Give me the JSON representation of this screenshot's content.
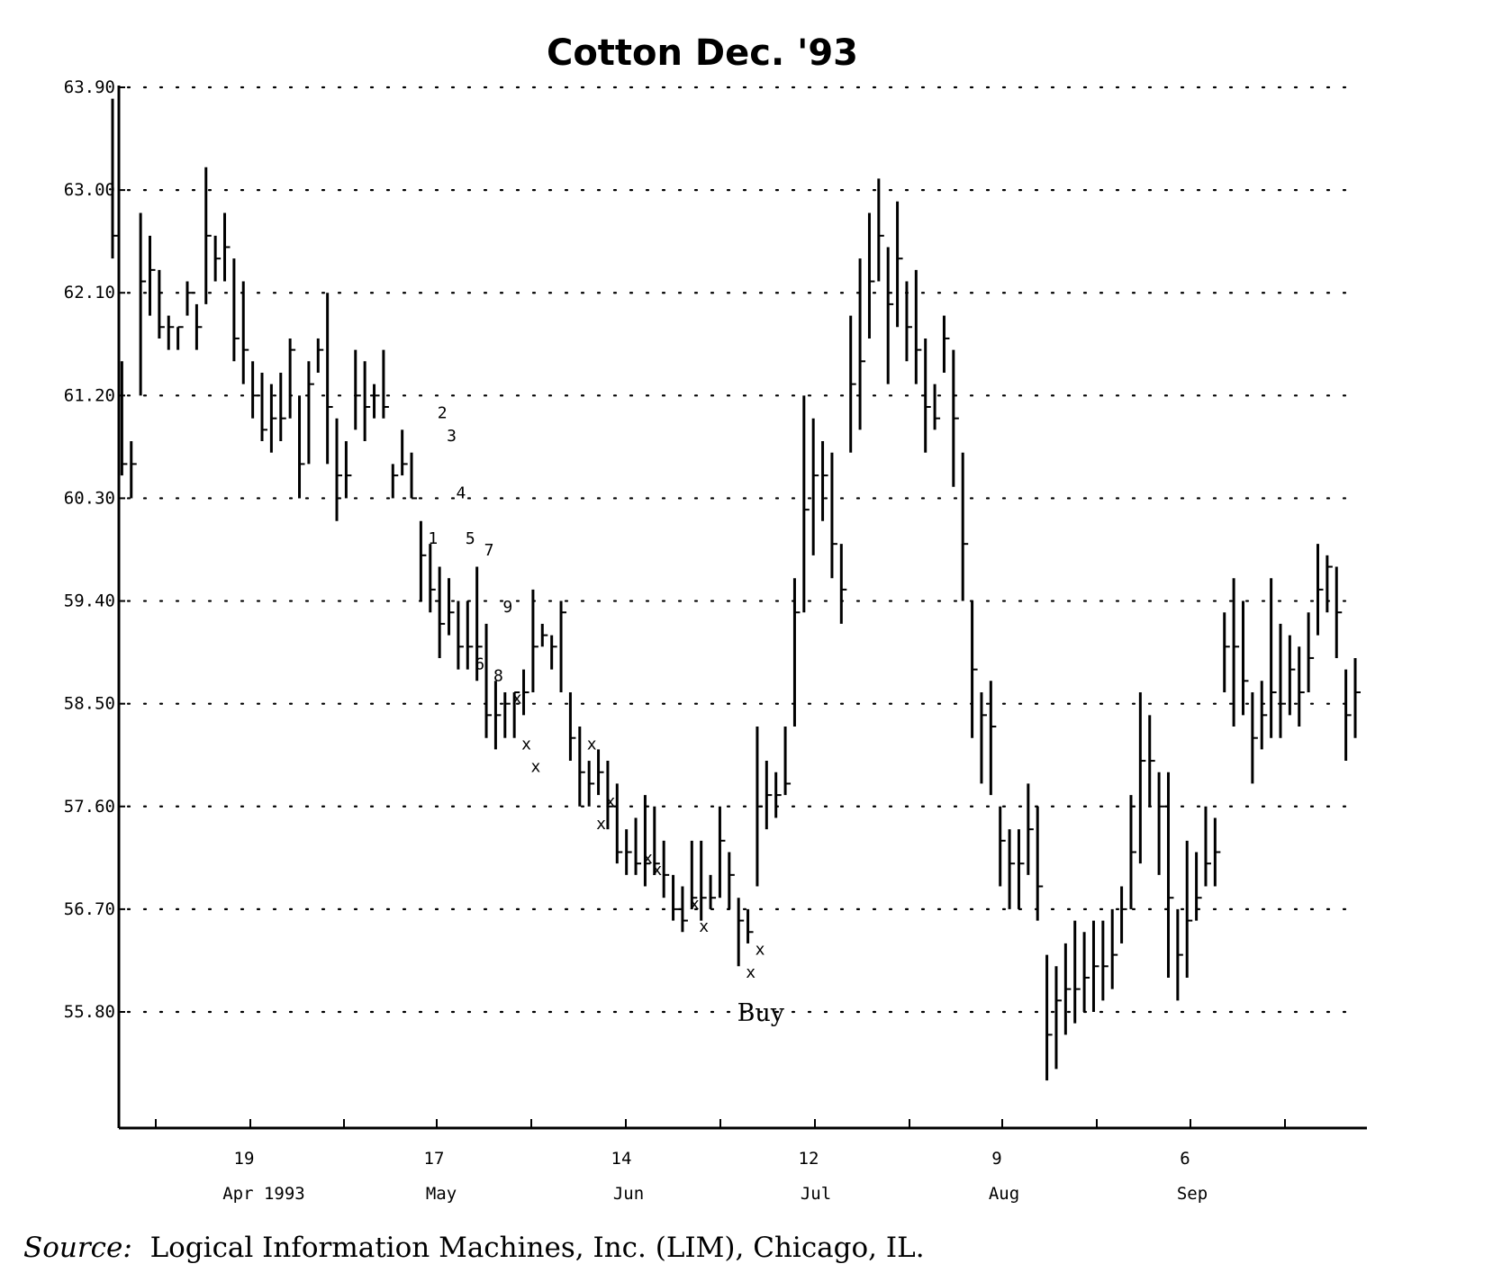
{
  "chart_data": {
    "type": "bar",
    "subtype": "ohlc",
    "title": "Cotton Dec. '93",
    "xlabel": "",
    "ylabel": "",
    "ylim": [
      55.8,
      63.9
    ],
    "y_ticks": [
      "63.90",
      "63.00",
      "62.10",
      "61.20",
      "60.30",
      "59.40",
      "58.50",
      "57.60",
      "56.70",
      "55.80"
    ],
    "grid": "dotted horizontal",
    "x_tick_labels": [
      {
        "day": "19",
        "month": "Apr 1993"
      },
      {
        "day": "17",
        "month": "May"
      },
      {
        "day": "14",
        "month": "Jun"
      },
      {
        "day": "12",
        "month": "Jul"
      },
      {
        "day": "9",
        "month": "Aug"
      },
      {
        "day": "6",
        "month": "Sep"
      }
    ],
    "bars": [
      {
        "h": 63.8,
        "l": 62.4,
        "c": 62.6
      },
      {
        "h": 61.5,
        "l": 60.5,
        "c": 60.6
      },
      {
        "h": 60.8,
        "l": 60.3,
        "c": 60.6
      },
      {
        "h": 62.8,
        "l": 61.2,
        "c": 62.2
      },
      {
        "h": 62.6,
        "l": 61.9,
        "c": 62.3
      },
      {
        "h": 62.3,
        "l": 61.7,
        "c": 61.8
      },
      {
        "h": 61.9,
        "l": 61.6,
        "c": 61.8
      },
      {
        "h": 61.8,
        "l": 61.6,
        "c": 61.8
      },
      {
        "h": 62.2,
        "l": 61.9,
        "c": 62.1
      },
      {
        "h": 62.0,
        "l": 61.6,
        "c": 61.8
      },
      {
        "h": 63.2,
        "l": 62.0,
        "c": 62.6
      },
      {
        "h": 62.6,
        "l": 62.2,
        "c": 62.4
      },
      {
        "h": 62.8,
        "l": 62.2,
        "c": 62.5
      },
      {
        "h": 62.4,
        "l": 61.5,
        "c": 61.7
      },
      {
        "h": 62.2,
        "l": 61.3,
        "c": 61.6
      },
      {
        "h": 61.5,
        "l": 61.0,
        "c": 61.2
      },
      {
        "h": 61.4,
        "l": 60.8,
        "c": 60.9
      },
      {
        "h": 61.3,
        "l": 60.7,
        "c": 61.0
      },
      {
        "h": 61.4,
        "l": 60.8,
        "c": 61.0
      },
      {
        "h": 61.7,
        "l": 61.0,
        "c": 61.6
      },
      {
        "h": 61.2,
        "l": 60.3,
        "c": 60.6
      },
      {
        "h": 61.5,
        "l": 60.6,
        "c": 61.3
      },
      {
        "h": 61.7,
        "l": 61.4,
        "c": 61.6
      },
      {
        "h": 62.1,
        "l": 60.6,
        "c": 61.1
      },
      {
        "h": 61.0,
        "l": 60.1,
        "c": 60.5
      },
      {
        "h": 60.8,
        "l": 60.3,
        "c": 60.5
      },
      {
        "h": 61.6,
        "l": 60.9,
        "c": 61.2
      },
      {
        "h": 61.5,
        "l": 60.8,
        "c": 61.1
      },
      {
        "h": 61.3,
        "l": 61.0,
        "c": 61.2
      },
      {
        "h": 61.6,
        "l": 61.0,
        "c": 61.1
      },
      {
        "h": 60.6,
        "l": 60.3,
        "c": 60.5
      },
      {
        "h": 60.9,
        "l": 60.5,
        "c": 60.6
      },
      {
        "h": 60.7,
        "l": 60.3,
        "c": 60.3
      },
      {
        "h": 60.1,
        "l": 59.4,
        "c": 59.8
      },
      {
        "h": 59.9,
        "l": 59.3,
        "c": 59.5
      },
      {
        "h": 59.7,
        "l": 58.9,
        "c": 59.2
      },
      {
        "h": 59.6,
        "l": 59.1,
        "c": 59.3
      },
      {
        "h": 59.4,
        "l": 58.8,
        "c": 59.0
      },
      {
        "h": 59.4,
        "l": 58.8,
        "c": 59.0
      },
      {
        "h": 59.7,
        "l": 58.7,
        "c": 59.0
      },
      {
        "h": 59.2,
        "l": 58.2,
        "c": 58.4
      },
      {
        "h": 58.7,
        "l": 58.1,
        "c": 58.4
      },
      {
        "h": 58.6,
        "l": 58.2,
        "c": 58.5
      },
      {
        "h": 58.6,
        "l": 58.2,
        "c": 58.6
      },
      {
        "h": 58.8,
        "l": 58.4,
        "c": 58.6
      },
      {
        "h": 59.5,
        "l": 58.6,
        "c": 59.0
      },
      {
        "h": 59.2,
        "l": 59.0,
        "c": 59.1
      },
      {
        "h": 59.1,
        "l": 58.8,
        "c": 59.0
      },
      {
        "h": 59.4,
        "l": 58.6,
        "c": 59.3
      },
      {
        "h": 58.6,
        "l": 58.0,
        "c": 58.2
      },
      {
        "h": 58.3,
        "l": 57.6,
        "c": 57.9
      },
      {
        "h": 58.0,
        "l": 57.6,
        "c": 57.8
      },
      {
        "h": 58.1,
        "l": 57.7,
        "c": 57.9
      },
      {
        "h": 58.0,
        "l": 57.4,
        "c": 57.6
      },
      {
        "h": 57.8,
        "l": 57.1,
        "c": 57.2
      },
      {
        "h": 57.4,
        "l": 57.0,
        "c": 57.2
      },
      {
        "h": 57.5,
        "l": 57.0,
        "c": 57.1
      },
      {
        "h": 57.7,
        "l": 56.9,
        "c": 57.1
      },
      {
        "h": 57.6,
        "l": 57.0,
        "c": 57.1
      },
      {
        "h": 57.3,
        "l": 56.8,
        "c": 57.0
      },
      {
        "h": 57.0,
        "l": 56.6,
        "c": 56.7
      },
      {
        "h": 56.9,
        "l": 56.5,
        "c": 56.6
      },
      {
        "h": 57.3,
        "l": 56.7,
        "c": 56.8
      },
      {
        "h": 57.3,
        "l": 56.6,
        "c": 56.8
      },
      {
        "h": 57.0,
        "l": 56.7,
        "c": 56.8
      },
      {
        "h": 57.6,
        "l": 56.8,
        "c": 57.3
      },
      {
        "h": 57.2,
        "l": 56.7,
        "c": 57.0
      },
      {
        "h": 56.8,
        "l": 56.2,
        "c": 56.6
      },
      {
        "h": 56.7,
        "l": 56.4,
        "c": 56.5
      },
      {
        "h": 58.3,
        "l": 56.9,
        "c": 57.6
      },
      {
        "h": 58.0,
        "l": 57.4,
        "c": 57.7
      },
      {
        "h": 57.9,
        "l": 57.5,
        "c": 57.7
      },
      {
        "h": 58.3,
        "l": 57.7,
        "c": 57.8
      },
      {
        "h": 59.6,
        "l": 58.3,
        "c": 59.3
      },
      {
        "h": 61.2,
        "l": 59.3,
        "c": 60.2
      },
      {
        "h": 61.0,
        "l": 59.8,
        "c": 60.5
      },
      {
        "h": 60.8,
        "l": 60.1,
        "c": 60.5
      },
      {
        "h": 60.7,
        "l": 59.6,
        "c": 59.9
      },
      {
        "h": 59.9,
        "l": 59.2,
        "c": 59.5
      },
      {
        "h": 61.9,
        "l": 60.7,
        "c": 61.3
      },
      {
        "h": 62.4,
        "l": 60.9,
        "c": 61.5
      },
      {
        "h": 62.8,
        "l": 61.7,
        "c": 62.2
      },
      {
        "h": 63.1,
        "l": 62.2,
        "c": 62.6
      },
      {
        "h": 62.5,
        "l": 61.3,
        "c": 62.0
      },
      {
        "h": 62.9,
        "l": 61.8,
        "c": 62.4
      },
      {
        "h": 62.2,
        "l": 61.5,
        "c": 61.8
      },
      {
        "h": 62.3,
        "l": 61.3,
        "c": 61.6
      },
      {
        "h": 61.7,
        "l": 60.7,
        "c": 61.1
      },
      {
        "h": 61.3,
        "l": 60.9,
        "c": 61.0
      },
      {
        "h": 61.9,
        "l": 61.4,
        "c": 61.7
      },
      {
        "h": 61.6,
        "l": 60.4,
        "c": 61.0
      },
      {
        "h": 60.7,
        "l": 59.4,
        "c": 59.9
      },
      {
        "h": 59.4,
        "l": 58.2,
        "c": 58.8
      },
      {
        "h": 58.6,
        "l": 57.8,
        "c": 58.4
      },
      {
        "h": 58.7,
        "l": 57.7,
        "c": 58.3
      },
      {
        "h": 57.6,
        "l": 56.9,
        "c": 57.3
      },
      {
        "h": 57.4,
        "l": 56.7,
        "c": 57.1
      },
      {
        "h": 57.4,
        "l": 56.7,
        "c": 57.1
      },
      {
        "h": 57.8,
        "l": 57.0,
        "c": 57.4
      },
      {
        "h": 57.6,
        "l": 56.6,
        "c": 56.9
      },
      {
        "h": 56.3,
        "l": 55.2,
        "c": 55.6
      },
      {
        "h": 56.2,
        "l": 55.3,
        "c": 55.9
      },
      {
        "h": 56.4,
        "l": 55.6,
        "c": 56.0
      },
      {
        "h": 56.6,
        "l": 55.7,
        "c": 56.0
      },
      {
        "h": 56.5,
        "l": 55.8,
        "c": 56.1
      },
      {
        "h": 56.6,
        "l": 55.8,
        "c": 56.2
      },
      {
        "h": 56.6,
        "l": 55.9,
        "c": 56.2
      },
      {
        "h": 56.7,
        "l": 56.0,
        "c": 56.3
      },
      {
        "h": 56.9,
        "l": 56.4,
        "c": 56.7
      },
      {
        "h": 57.7,
        "l": 56.7,
        "c": 57.2
      },
      {
        "h": 58.6,
        "l": 57.1,
        "c": 58.0
      },
      {
        "h": 58.4,
        "l": 57.6,
        "c": 58.0
      },
      {
        "h": 57.9,
        "l": 57.0,
        "c": 57.6
      },
      {
        "h": 57.9,
        "l": 56.1,
        "c": 56.8
      },
      {
        "h": 56.7,
        "l": 55.9,
        "c": 56.3
      },
      {
        "h": 57.3,
        "l": 56.1,
        "c": 56.6
      },
      {
        "h": 57.2,
        "l": 56.6,
        "c": 56.8
      },
      {
        "h": 57.6,
        "l": 56.9,
        "c": 57.1
      },
      {
        "h": 57.5,
        "l": 56.9,
        "c": 57.2
      },
      {
        "h": 59.3,
        "l": 58.6,
        "c": 59.0
      },
      {
        "h": 59.6,
        "l": 58.3,
        "c": 59.0
      },
      {
        "h": 59.4,
        "l": 58.4,
        "c": 58.7
      },
      {
        "h": 58.6,
        "l": 57.8,
        "c": 58.2
      },
      {
        "h": 58.7,
        "l": 58.1,
        "c": 58.4
      },
      {
        "h": 59.6,
        "l": 58.2,
        "c": 58.6
      },
      {
        "h": 59.2,
        "l": 58.2,
        "c": 58.5
      },
      {
        "h": 59.1,
        "l": 58.4,
        "c": 58.8
      },
      {
        "h": 59.0,
        "l": 58.3,
        "c": 58.6
      },
      {
        "h": 59.3,
        "l": 58.6,
        "c": 58.9
      },
      {
        "h": 59.9,
        "l": 59.1,
        "c": 59.5
      },
      {
        "h": 59.8,
        "l": 59.3,
        "c": 59.7
      },
      {
        "h": 59.7,
        "l": 58.9,
        "c": 59.3
      },
      {
        "h": 58.8,
        "l": 58.0,
        "c": 58.4
      },
      {
        "h": 58.9,
        "l": 58.2,
        "c": 58.6
      }
    ],
    "annotations": [
      {
        "text": "1",
        "i": 33,
        "y": 59.9
      },
      {
        "text": "2",
        "i": 34,
        "y": 61.0
      },
      {
        "text": "3",
        "i": 35,
        "y": 60.8
      },
      {
        "text": "4",
        "i": 36,
        "y": 60.3
      },
      {
        "text": "5",
        "i": 37,
        "y": 59.9
      },
      {
        "text": "6",
        "i": 38,
        "y": 58.8
      },
      {
        "text": "7",
        "i": 39,
        "y": 59.8
      },
      {
        "text": "8",
        "i": 40,
        "y": 58.7
      },
      {
        "text": "9",
        "i": 41,
        "y": 59.3
      },
      {
        "text": "x",
        "i": 42,
        "y": 58.5
      },
      {
        "text": "x",
        "i": 43,
        "y": 58.1
      },
      {
        "text": "x",
        "i": 44,
        "y": 57.9
      },
      {
        "text": "x",
        "i": 50,
        "y": 58.1
      },
      {
        "text": "x",
        "i": 51,
        "y": 57.4
      },
      {
        "text": "x",
        "i": 52,
        "y": 57.6
      },
      {
        "text": "x",
        "i": 56,
        "y": 57.1
      },
      {
        "text": "x",
        "i": 57,
        "y": 57.0
      },
      {
        "text": "x",
        "i": 61,
        "y": 56.7
      },
      {
        "text": "x",
        "i": 62,
        "y": 56.5
      },
      {
        "text": "x",
        "i": 67,
        "y": 56.1
      },
      {
        "text": "x",
        "i": 68,
        "y": 56.3
      }
    ],
    "buy_label": "Buy",
    "buy_index": 68,
    "buy_y": 55.8
  },
  "source": {
    "lead": "Source:",
    "text": "Logical Information Machines, Inc. (LIM), Chicago, IL."
  }
}
